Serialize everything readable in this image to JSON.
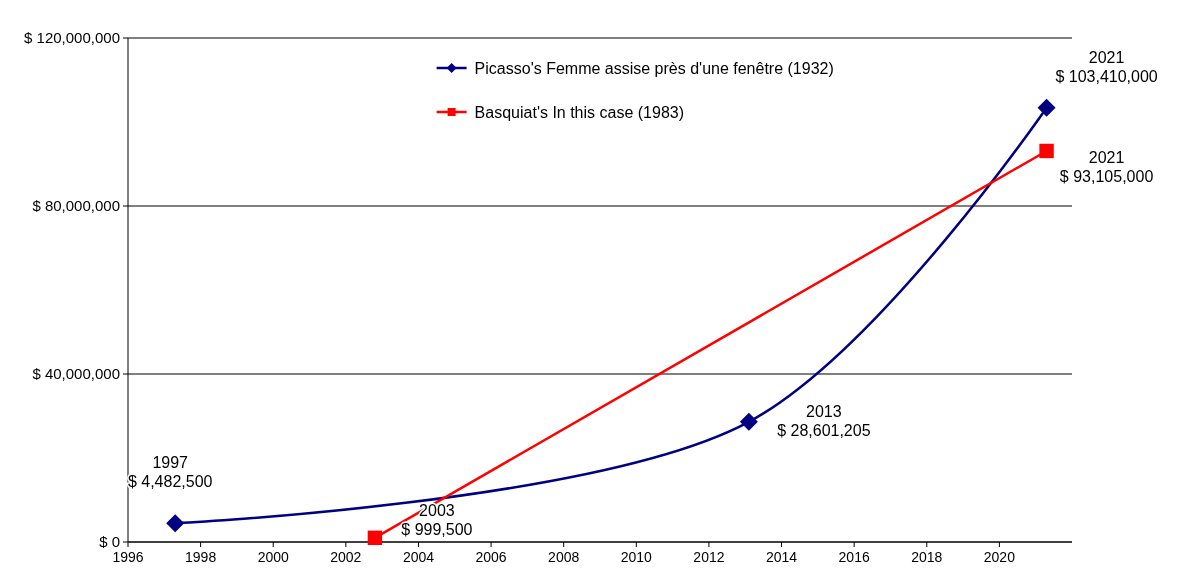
{
  "chart_data": {
    "type": "line",
    "xlim": [
      1996,
      2022
    ],
    "xticks": [
      1996,
      1998,
      2000,
      2002,
      2004,
      2006,
      2008,
      2010,
      2012,
      2014,
      2016,
      2018,
      2020
    ],
    "ylim": [
      0,
      120000000
    ],
    "yticks": [
      {
        "value": 0,
        "label": "$ 0"
      },
      {
        "value": 40000000,
        "label": "$ 40,000,000"
      },
      {
        "value": 80000000,
        "label": "$ 80,000,000"
      },
      {
        "value": 120000000,
        "label": "$ 120,000,000"
      }
    ],
    "grid": "y",
    "legend": "top",
    "series": [
      {
        "name": "Picasso's Femme assise près d'une fenêtre (1932)",
        "color": "#000080",
        "marker": "diamond",
        "x": [
          1997.3,
          2013.1,
          2021.3
        ],
        "values": [
          4482500,
          28601205,
          103410000
        ]
      },
      {
        "name": "Basquiat's In this case (1983)",
        "color": "#ff0000",
        "marker": "square",
        "x": [
          2002.8,
          2021.3
        ],
        "values": [
          999500,
          93105000
        ]
      }
    ],
    "annotations": [
      {
        "text": "1997\n$ 4,482,500",
        "x": 1997.3,
        "y": 4482500
      },
      {
        "text": "2003\n$ 999,500",
        "x": 2002.8,
        "y": 999500
      },
      {
        "text": "2013\n$ 28,601,205",
        "x": 2013.1,
        "y": 28601205
      },
      {
        "text": "2021\n$ 103,410,000",
        "x": 2021.3,
        "y": 103410000
      },
      {
        "text": "2021\n$ 93,105,000",
        "x": 2021.3,
        "y": 93105000
      }
    ]
  }
}
